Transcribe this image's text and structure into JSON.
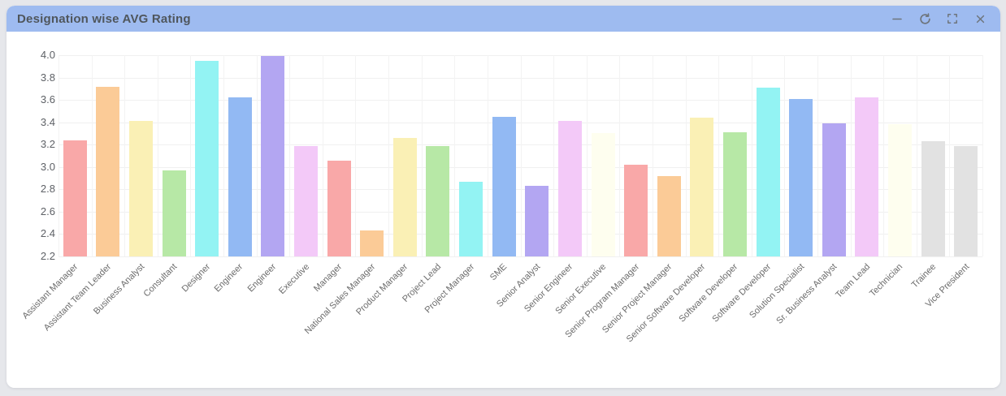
{
  "window": {
    "title": "Designation wise AVG Rating",
    "controls": [
      {
        "id": "minimize",
        "label": "minimize"
      },
      {
        "id": "refresh",
        "label": "refresh"
      },
      {
        "id": "fullscreen",
        "label": "fullscreen"
      },
      {
        "id": "close",
        "label": "close"
      }
    ]
  },
  "theme": {
    "titlebar_bg": "#9EBBF0",
    "titlebar_text": "#4F565C",
    "icon_color": "#6E757C",
    "page_bg": "#E6E7EB",
    "card_bg": "#FFFFFF",
    "grid_color": "#F0F0F0",
    "y_label_color": "#5E6166",
    "x_label_color": "#6B6B6B"
  },
  "chart_data": {
    "type": "bar",
    "title": "Designation wise AVG Rating",
    "xlabel": "",
    "ylabel": "",
    "ylim": [
      2.2,
      4.0
    ],
    "ytick_step": 0.2,
    "yticks": [
      "4.0",
      "3.8",
      "3.6",
      "3.4",
      "3.2",
      "3.0",
      "2.8",
      "2.6",
      "2.4",
      "2.2"
    ],
    "grid": true,
    "legend": false,
    "x_label_rotation": 45,
    "categories": [
      "Assistant Manager",
      "Assistant Team Leader",
      "Business Analyst",
      "Consultant",
      "Designer",
      "Engineer",
      "Engineer",
      "Executive",
      "Manager",
      "National Sales Manager",
      "Product Manager",
      "Project Lead",
      "Project Manager",
      "SME",
      "Senior Analyst",
      "Senior Engineer",
      "Senior Executive",
      "Senior Program Manager",
      "Senior Project Manager",
      "Senior Software Developer",
      "Software Developer",
      "Software Developer",
      "Solution Specialist",
      "Sr. Business Analyst",
      "Team Lead",
      "Technician",
      "Trainee",
      "Vice President"
    ],
    "values": [
      3.24,
      3.72,
      3.41,
      2.97,
      3.95,
      3.62,
      3.99,
      3.19,
      3.06,
      2.43,
      3.26,
      3.19,
      2.87,
      3.45,
      2.83,
      3.41,
      3.3,
      3.02,
      2.92,
      3.44,
      3.31,
      3.71,
      3.61,
      3.39,
      3.62,
      3.38,
      3.23,
      3.19
    ],
    "bar_colors": [
      "#F9A8A8",
      "#FBCB97",
      "#FAF0B5",
      "#B7E8A6",
      "#93F3F3",
      "#92B9F3",
      "#B3A6F2",
      "#F3C9F8",
      "#F9A8A8",
      "#FBCB97",
      "#FAF0B5",
      "#B7E8A6",
      "#93F3F3",
      "#92B9F3",
      "#B3A6F2",
      "#F3C9F8",
      "#FEFEEF",
      "#F9A8A8",
      "#FBCB97",
      "#FAF0B5",
      "#B7E8A6",
      "#93F3F3",
      "#92B9F3",
      "#B3A6F2",
      "#F3C9F8",
      "#FEFEEF",
      "#E2E2E2",
      "#E2E2E2"
    ]
  }
}
